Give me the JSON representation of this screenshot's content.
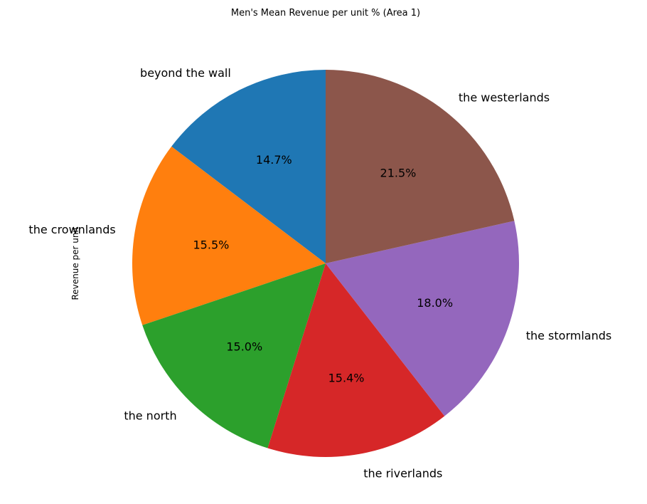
{
  "chart_data": {
    "type": "pie",
    "title": "Men's Mean Revenue per unit % (Area 1)",
    "ylabel": "Revenue per unit",
    "start_angle": 90,
    "direction": "counterclockwise",
    "slices": [
      {
        "label": "beyond the wall",
        "value": 14.7,
        "pct_label": "14.7%",
        "color": "#1f77b4"
      },
      {
        "label": "the crownlands",
        "value": 15.5,
        "pct_label": "15.5%",
        "color": "#ff7f0e"
      },
      {
        "label": "the north",
        "value": 15.0,
        "pct_label": "15.0%",
        "color": "#2ca02c"
      },
      {
        "label": "the riverlands",
        "value": 15.4,
        "pct_label": "15.4%",
        "color": "#d62728"
      },
      {
        "label": "the stormlands",
        "value": 18.0,
        "pct_label": "18.0%",
        "color": "#9467bd"
      },
      {
        "label": "the westerlands",
        "value": 21.5,
        "pct_label": "21.5%",
        "color": "#8c564b"
      }
    ]
  }
}
